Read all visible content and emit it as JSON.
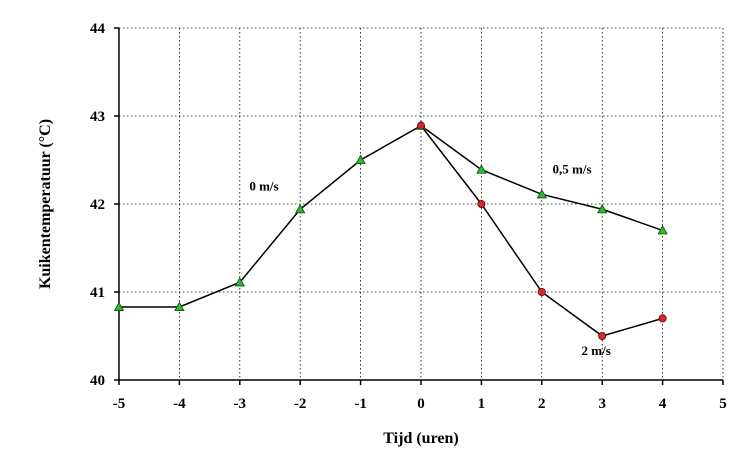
{
  "chart_data": {
    "type": "line",
    "title": "",
    "xlabel": "Tijd (uren)",
    "ylabel": "Kuikentemperatuur (°C)",
    "xlim": [
      -5,
      5
    ],
    "ylim": [
      40,
      44
    ],
    "x_ticks": [
      -5,
      -4,
      -3,
      -2,
      -1,
      0,
      1,
      2,
      3,
      4,
      5
    ],
    "y_ticks": [
      40,
      41,
      42,
      43,
      44
    ],
    "grid": true,
    "series": [
      {
        "marker": "triangle",
        "color": "#2db82d",
        "x": [
          -5,
          -4,
          -3,
          -2,
          -1,
          0
        ],
        "y": [
          40.83,
          40.83,
          41.11,
          41.94,
          42.5,
          42.89
        ]
      },
      {
        "marker": "triangle",
        "color": "#2db82d",
        "x": [
          0,
          1,
          2,
          3,
          4
        ],
        "y": [
          42.89,
          42.39,
          42.11,
          41.94,
          41.7
        ]
      },
      {
        "marker": "circle",
        "color": "#d42a2a",
        "x": [
          0,
          1,
          2,
          3,
          4
        ],
        "y": [
          42.89,
          42.0,
          41.0,
          40.5,
          40.7
        ]
      }
    ],
    "annotations": [
      {
        "text": "0 m/s",
        "x": -2.6,
        "y": 42.2
      },
      {
        "text": "0,5 m/s",
        "x": 2.5,
        "y": 42.39
      },
      {
        "text": "2 m/s",
        "x": 2.9,
        "y": 40.33
      }
    ]
  }
}
